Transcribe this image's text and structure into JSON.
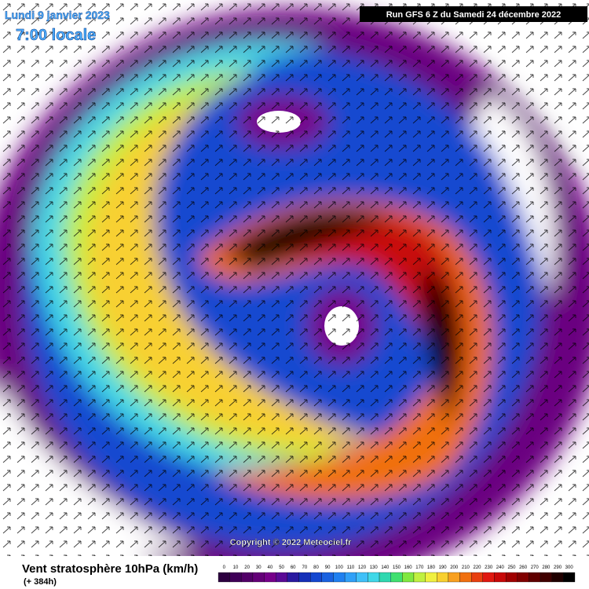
{
  "header": {
    "date": "Lundi 9 janvier 2023",
    "time": "7:00 locale",
    "run": "Run GFS 6 Z du Samedi 24 décembre 2022"
  },
  "copyright": "Copyright © 2022 Meteociel.fr",
  "legend": {
    "title": "Vent stratosphère 10hPa (km/h)",
    "lead": "(+ 384h)",
    "ticks": [
      0,
      10,
      20,
      30,
      40,
      50,
      60,
      70,
      80,
      90,
      100,
      110,
      120,
      130,
      140,
      150,
      160,
      170,
      180,
      190,
      200,
      210,
      220,
      230,
      240,
      250,
      260,
      270,
      280,
      290,
      300
    ],
    "colors": [
      "#2d0040",
      "#3f0058",
      "#520068",
      "#640078",
      "#76008a",
      "#5a0a96",
      "#2a1aa0",
      "#1530b8",
      "#1448d0",
      "#1a62e0",
      "#2080f0",
      "#30a0f8",
      "#40c0f8",
      "#40d8e8",
      "#30d8b0",
      "#40e070",
      "#80e840",
      "#c0f040",
      "#f0f040",
      "#f8d030",
      "#f8a020",
      "#f07010",
      "#e84010",
      "#e01810",
      "#c80808",
      "#a00000",
      "#800000",
      "#600000",
      "#400000",
      "#200000",
      "#000000"
    ]
  }
}
